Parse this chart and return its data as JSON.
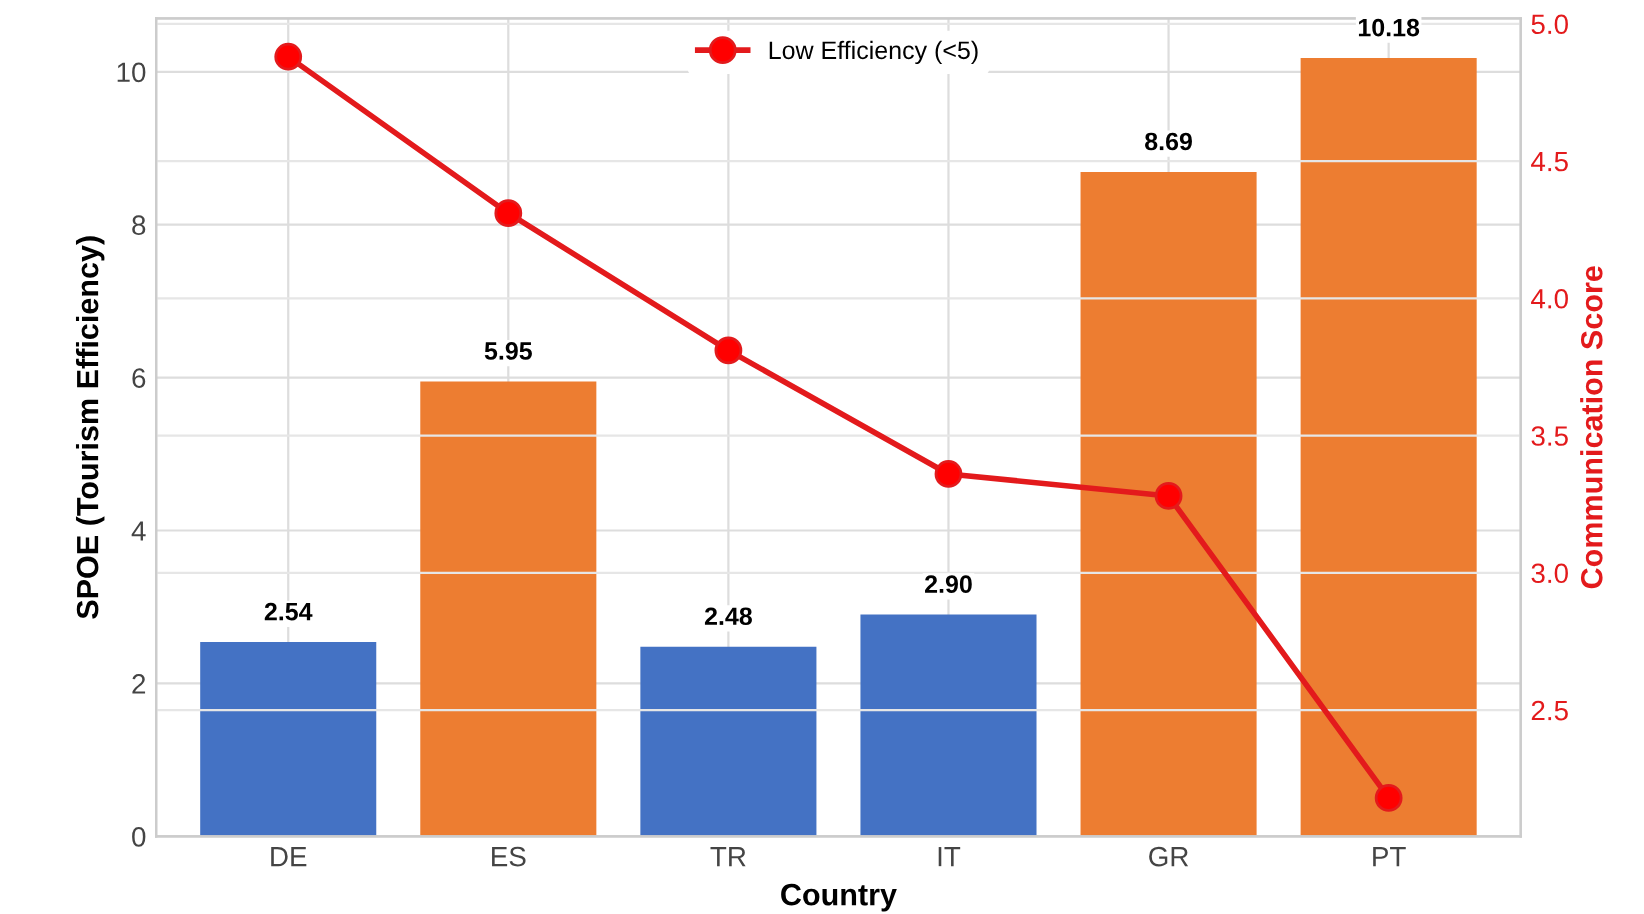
{
  "chart_data": {
    "type": "bar",
    "xlabel": "Country",
    "ylabel": "SPOE (Tourism Efficiency)",
    "y2label": "Communication Score",
    "categories": [
      "DE",
      "ES",
      "TR",
      "IT",
      "GR",
      "PT"
    ],
    "series": [
      {
        "values": [
          2.54,
          5.95,
          2.48,
          2.9,
          8.69,
          10.18
        ],
        "colors": [
          "#4472c4",
          "#ed7d31",
          "#4472c4",
          "#4472c4",
          "#ed7d31",
          "#ed7d31"
        ],
        "value_labels": [
          "2.54",
          "5.95",
          "2.48",
          "2.90",
          "8.69",
          "10.18"
        ]
      },
      {
        "type": "line",
        "name": "Low Efficiency (<5)",
        "axis": "y2",
        "color": "#e31a1c",
        "marker": "circle",
        "values": [
          4.88,
          4.31,
          3.81,
          3.36,
          3.28,
          2.18
        ]
      }
    ],
    "ylim": [
      0,
      10.7
    ],
    "yticks": [
      0,
      2,
      4,
      6,
      8,
      10
    ],
    "y2lim": [
      2.04,
      5.02
    ],
    "y2ticks": [
      2.5,
      {
        "value": 3,
        "label": "3.0"
      },
      3.5,
      {
        "value": 4,
        "label": "4.0"
      },
      4.5,
      {
        "value": 5,
        "label": "5.0"
      }
    ],
    "grid": true,
    "legend": "top"
  }
}
